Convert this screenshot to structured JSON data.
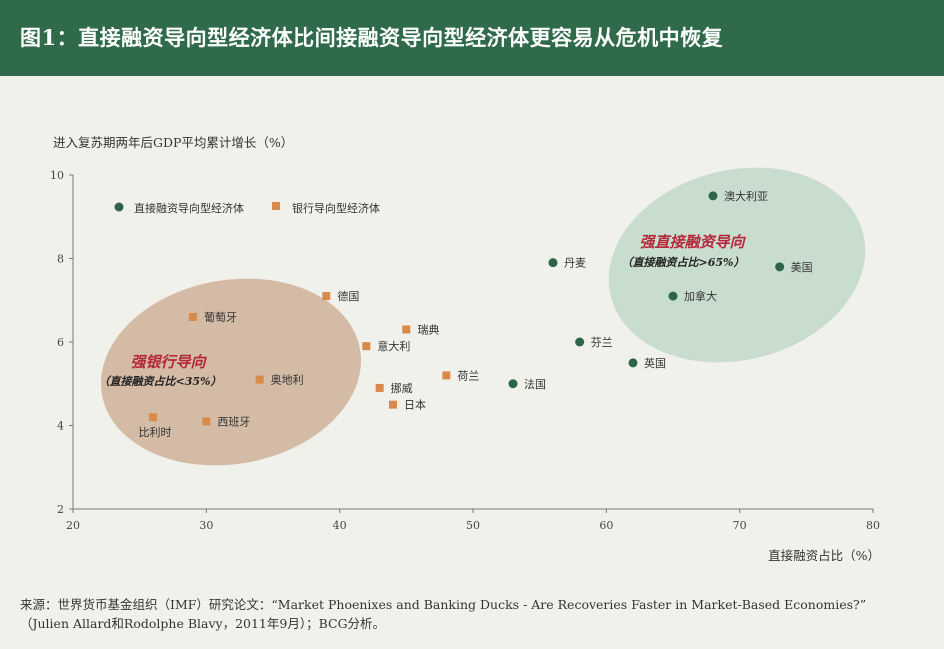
{
  "header": {
    "title": "图1：直接融资导向型经济体比间接融资导向型经济体更容易从危机中恢复"
  },
  "chart_data": {
    "type": "scatter",
    "ylabel": "进入复苏期两年后GDP平均累计增长（%）",
    "xlabel": "直接融资占比（%）",
    "xlim": [
      20,
      80
    ],
    "ylim": [
      2,
      10
    ],
    "xticks": [
      20,
      30,
      40,
      50,
      60,
      70,
      80
    ],
    "yticks": [
      2,
      4,
      6,
      8,
      10
    ],
    "legend_position": "top-left",
    "series": [
      {
        "name": "直接融资导向型经济体",
        "color": "#2d6447",
        "marker": "circle",
        "points": [
          {
            "label": "澳大利亚",
            "x": 68,
            "y": 9.5
          },
          {
            "label": "丹麦",
            "x": 56,
            "y": 7.9
          },
          {
            "label": "美国",
            "x": 73,
            "y": 7.8
          },
          {
            "label": "加拿大",
            "x": 65,
            "y": 7.1
          },
          {
            "label": "芬兰",
            "x": 58,
            "y": 6.0
          },
          {
            "label": "英国",
            "x": 62,
            "y": 5.5
          },
          {
            "label": "法国",
            "x": 53,
            "y": 5.0
          }
        ]
      },
      {
        "name": "银行导向型经济体",
        "color": "#d98a4a",
        "marker": "square",
        "points": [
          {
            "label": "德国",
            "x": 39,
            "y": 7.1
          },
          {
            "label": "葡萄牙",
            "x": 29,
            "y": 6.6
          },
          {
            "label": "瑞典",
            "x": 45,
            "y": 6.3
          },
          {
            "label": "意大利",
            "x": 42,
            "y": 5.9
          },
          {
            "label": "荷兰",
            "x": 48,
            "y": 5.2
          },
          {
            "label": "奥地利",
            "x": 34,
            "y": 5.1
          },
          {
            "label": "挪威",
            "x": 43,
            "y": 4.9
          },
          {
            "label": "日本",
            "x": 44,
            "y": 4.5
          },
          {
            "label": "西班牙",
            "x": 30,
            "y": 4.1
          },
          {
            "label": "比利时",
            "x": 26,
            "y": 4.2
          }
        ]
      }
    ],
    "regions": [
      {
        "title": "强直接融资导向",
        "subtitle": "（直接融资占比>65%）",
        "fill": "#b9d5c4"
      },
      {
        "title": "强银行导向",
        "subtitle": "（直接融资占比<35%）",
        "fill": "#c8a88e"
      }
    ]
  },
  "footer": {
    "source_line1": "来源：世界货币基金组织（IMF）研究论文：“Market Phoenixes and Banking Ducks - Are Recoveries Faster in Market-Based Economies?”",
    "source_line2": "（Julien Allard和Rodolphe Blavy，2011年9月）；BCG分析。"
  }
}
